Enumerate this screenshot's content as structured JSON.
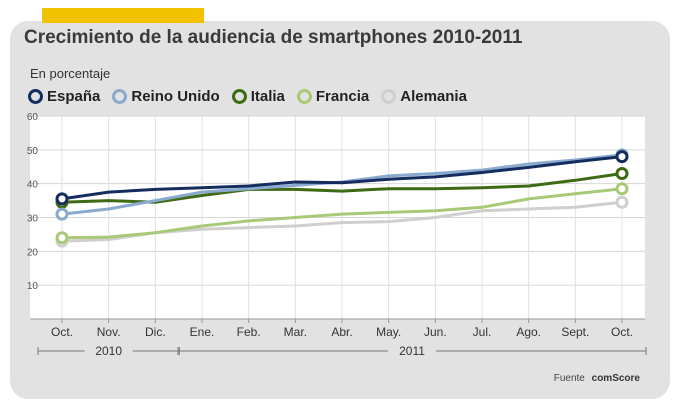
{
  "header": {
    "title": "Crecimiento de la audiencia de smartphones 2010-2011",
    "subtitle": "En porcentaje"
  },
  "source": {
    "label": "Fuente",
    "name": "comScore"
  },
  "chart_data": {
    "type": "line",
    "categories": [
      "Oct.",
      "Nov.",
      "Dic.",
      "Ene.",
      "Feb.",
      "Mar.",
      "Abr.",
      "May.",
      "Jun.",
      "Jul.",
      "Ago.",
      "Sept.",
      "Oct."
    ],
    "year_groups": [
      {
        "label": "2010",
        "from": 0,
        "to": 2
      },
      {
        "label": "2011",
        "from": 3,
        "to": 12
      }
    ],
    "ylim": [
      0,
      60
    ],
    "yticks": [
      10,
      20,
      30,
      40,
      50,
      60
    ],
    "grid": true,
    "legend_position": "top-left",
    "series": [
      {
        "name": "España",
        "color": "#142d5e",
        "values": [
          35.5,
          37.5,
          38.3,
          38.8,
          39.3,
          40.5,
          40.3,
          41.3,
          42.0,
          43.3,
          44.8,
          46.5,
          48.0
        ]
      },
      {
        "name": "Reino Unido",
        "color": "#8aa9cf",
        "values": [
          31.0,
          32.5,
          35.0,
          37.5,
          38.5,
          39.5,
          40.5,
          42.3,
          43.0,
          44.0,
          45.8,
          47.0,
          48.5
        ]
      },
      {
        "name": "Italia",
        "color": "#3e6a14",
        "values": [
          34.5,
          35.0,
          34.5,
          36.5,
          38.3,
          38.3,
          37.8,
          38.5,
          38.5,
          38.8,
          39.3,
          41.0,
          43.0
        ]
      },
      {
        "name": "Francia",
        "color": "#a8c978",
        "values": [
          24.0,
          24.2,
          25.5,
          27.5,
          29.0,
          30.0,
          31.0,
          31.5,
          32.0,
          33.0,
          35.5,
          37.0,
          38.5
        ]
      },
      {
        "name": "Alemania",
        "color": "#cfcfcf",
        "values": [
          23.0,
          23.5,
          25.5,
          26.5,
          27.0,
          27.5,
          28.5,
          28.8,
          30.0,
          32.0,
          32.5,
          33.0,
          34.5
        ]
      }
    ]
  }
}
